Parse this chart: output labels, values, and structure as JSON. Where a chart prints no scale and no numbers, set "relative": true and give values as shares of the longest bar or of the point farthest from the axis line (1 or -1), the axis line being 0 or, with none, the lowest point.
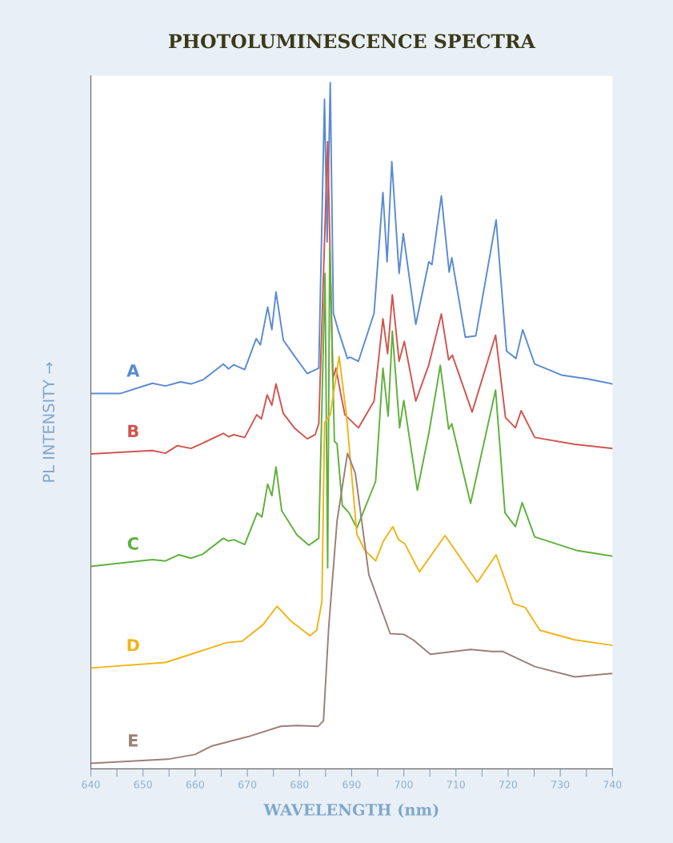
{
  "chart_data": {
    "type": "line",
    "title": "PHOTOLUMINESCENCE SPECTRA",
    "xlabel": "WAVELENGTH (nm)",
    "ylabel": "PL INTENSITY →",
    "relative": true,
    "xlim": [
      640,
      740
    ],
    "xticks": [
      640,
      {
        "value": 645,
        "label": null
      },
      650,
      {
        "value": 655,
        "label": null
      },
      660,
      {
        "value": 665,
        "label": null
      },
      670,
      {
        "value": 675,
        "label": null
      },
      680,
      {
        "value": 685,
        "label": null
      },
      690,
      {
        "value": 695,
        "label": null
      },
      700,
      {
        "value": 705,
        "label": null
      },
      710,
      {
        "value": 715,
        "label": null
      },
      720,
      {
        "value": 725,
        "label": null
      },
      730,
      {
        "value": 735,
        "label": null
      },
      740
    ],
    "grid": false,
    "legend": false,
    "marker": "none",
    "line_style": "solid",
    "series": [
      {
        "name": "A",
        "color": "#5b8bd0",
        "x": [
          640,
          645.6,
          651.8,
          654.3,
          657.2,
          659.2,
          661.5,
          665.4,
          666.4,
          667.4,
          669.5,
          671.7,
          672.5,
          673.9,
          674.7,
          675.5,
          676.9,
          679.0,
          681.5,
          683.7,
          684.8,
          685.3,
          685.9,
          686.5,
          687.4,
          689.2,
          689.7,
          691.3,
          694.3,
          696.0,
          696.8,
          697.7,
          699.1,
          699.9,
          702.3,
          704.8,
          705.4,
          707.2,
          708.7,
          709.2,
          711.8,
          713.8,
          717.7,
          719.7,
          721.5,
          722.8,
          725.1,
          730.2,
          735.4,
          740
        ],
        "values": [
          0.547,
          0.547,
          0.562,
          0.558,
          0.564,
          0.561,
          0.567,
          0.59,
          0.583,
          0.589,
          0.582,
          0.627,
          0.618,
          0.673,
          0.64,
          0.695,
          0.625,
          0.602,
          0.576,
          0.584,
          0.976,
          0.768,
          1.0,
          0.664,
          0.64,
          0.598,
          0.6,
          0.594,
          0.664,
          0.84,
          0.739,
          0.885,
          0.722,
          0.78,
          0.648,
          0.739,
          0.735,
          0.835,
          0.724,
          0.745,
          0.629,
          0.631,
          0.8,
          0.609,
          0.598,
          0.64,
          0.59,
          0.574,
          0.568,
          0.561
        ]
      },
      {
        "name": "B",
        "color": "#d0554f",
        "x": [
          640,
          651.8,
          654.3,
          656.6,
          659.2,
          661.5,
          665.4,
          666.4,
          667.4,
          669.5,
          671.8,
          672.7,
          673.8,
          674.7,
          675.5,
          676.9,
          679.0,
          681.5,
          683.0,
          683.7,
          685.4,
          686.4,
          687.0,
          687.9,
          688.7,
          691.3,
          694.3,
          696.0,
          696.9,
          697.8,
          699.1,
          700.1,
          702.3,
          704.8,
          707.2,
          708.6,
          709.3,
          713.1,
          717.6,
          719.5,
          721.4,
          722.5,
          725.1,
          732.8,
          740
        ],
        "values": [
          0.459,
          0.464,
          0.46,
          0.471,
          0.467,
          0.475,
          0.489,
          0.484,
          0.487,
          0.483,
          0.516,
          0.51,
          0.545,
          0.53,
          0.561,
          0.518,
          0.497,
          0.481,
          0.487,
          0.503,
          0.914,
          0.569,
          0.584,
          0.547,
          0.516,
          0.497,
          0.536,
          0.656,
          0.605,
          0.691,
          0.594,
          0.623,
          0.536,
          0.589,
          0.663,
          0.596,
          0.603,
          0.52,
          0.632,
          0.512,
          0.497,
          0.522,
          0.483,
          0.473,
          0.467
        ]
      },
      {
        "name": "C",
        "color": "#5fb03c",
        "x": [
          640,
          651.8,
          654.3,
          656.9,
          659.2,
          661.5,
          665.4,
          666.4,
          667.4,
          669.5,
          671.9,
          672.8,
          673.9,
          674.7,
          675.5,
          676.6,
          679.5,
          681.8,
          683.7,
          684.9,
          685.4,
          685.8,
          686.7,
          687.2,
          688.2,
          689.5,
          691.0,
          694.6,
          696.0,
          697.0,
          697.8,
          699.2,
          700.0,
          702.6,
          704.8,
          707.0,
          708.6,
          709.2,
          712.8,
          717.6,
          719.4,
          721.4,
          722.7,
          725.1,
          733.3,
          740
        ],
        "values": [
          0.295,
          0.305,
          0.303,
          0.312,
          0.307,
          0.313,
          0.336,
          0.332,
          0.334,
          0.327,
          0.373,
          0.367,
          0.415,
          0.398,
          0.44,
          0.376,
          0.341,
          0.326,
          0.336,
          0.722,
          0.293,
          0.76,
          0.477,
          0.474,
          0.384,
          0.373,
          0.351,
          0.419,
          0.584,
          0.514,
          0.638,
          0.497,
          0.537,
          0.406,
          0.489,
          0.588,
          0.495,
          0.503,
          0.387,
          0.552,
          0.373,
          0.353,
          0.388,
          0.338,
          0.318,
          0.31
        ]
      },
      {
        "name": "D",
        "color": "#f0b418",
        "x": [
          640,
          654.3,
          660.0,
          666.1,
          669.0,
          673.0,
          675.7,
          678.4,
          682.0,
          683.3,
          684.3,
          684.8,
          685.9,
          687.6,
          689.0,
          691.0,
          692.5,
          694.6,
          696.1,
          697.9,
          699.0,
          700.2,
          703.0,
          707.9,
          714.1,
          717.7,
          721.0,
          723.3,
          726.1,
          732.8,
          740
        ],
        "values": [
          0.147,
          0.155,
          0.169,
          0.184,
          0.186,
          0.21,
          0.237,
          0.215,
          0.194,
          0.202,
          0.244,
          0.504,
          0.516,
          0.601,
          0.516,
          0.342,
          0.319,
          0.303,
          0.332,
          0.353,
          0.334,
          0.328,
          0.287,
          0.34,
          0.272,
          0.312,
          0.241,
          0.235,
          0.202,
          0.188,
          0.18
        ]
      },
      {
        "name": "E",
        "color": "#9c7f78",
        "x": [
          640,
          654.8,
          660.0,
          663.1,
          670.2,
          676.4,
          679.5,
          683.6,
          684.6,
          685.6,
          687.2,
          689.2,
          690.7,
          693.3,
          697.4,
          700.0,
          701.8,
          705.1,
          712.8,
          716.9,
          719.0,
          725.1,
          732.8,
          740
        ],
        "values": [
          0.008,
          0.014,
          0.021,
          0.033,
          0.047,
          0.062,
          0.063,
          0.062,
          0.07,
          0.206,
          0.361,
          0.46,
          0.431,
          0.283,
          0.197,
          0.196,
          0.188,
          0.167,
          0.174,
          0.171,
          0.171,
          0.149,
          0.134,
          0.139
        ]
      }
    ]
  }
}
